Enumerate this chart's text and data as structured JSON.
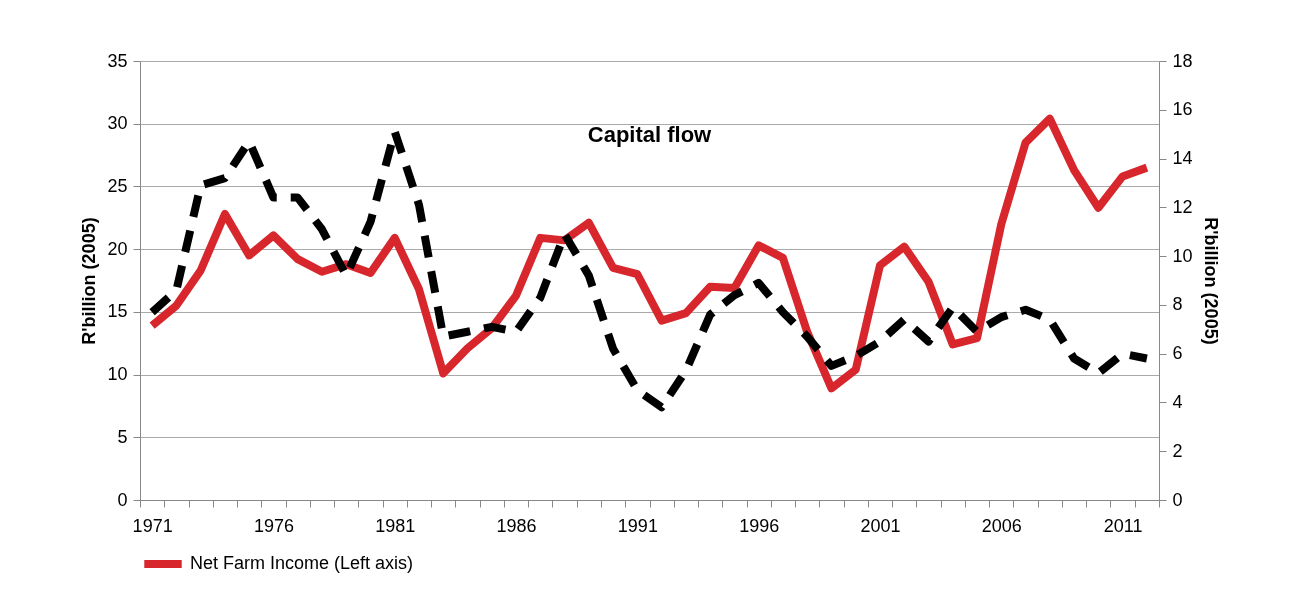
{
  "chart_data": {
    "type": "line",
    "title": "Capital flow",
    "ylabel": "R'billion (2005)",
    "y2label": "R'billion (2005)",
    "categories": [
      "1971",
      null,
      null,
      null,
      null,
      "1976",
      null,
      null,
      null,
      null,
      "1981",
      null,
      null,
      null,
      null,
      "1986",
      null,
      null,
      null,
      null,
      "1991",
      null,
      null,
      null,
      null,
      "1996",
      null,
      null,
      null,
      null,
      "2001",
      null,
      null,
      null,
      null,
      "2006",
      null,
      null,
      null,
      null,
      "2011",
      null
    ],
    "series": [
      {
        "name": "Net Farm Income (Left axis)",
        "color": "#d7262c",
        "line_style": "solid",
        "values": [
          13.9,
          15.5,
          18.3,
          22.8,
          19.5,
          21.1,
          19.2,
          18.2,
          18.8,
          18.1,
          20.9,
          16.8,
          10.1,
          12.1,
          13.7,
          16.3,
          20.9,
          20.7,
          22.1,
          18.5,
          18.0,
          14.3,
          14.9,
          17.0,
          16.9,
          20.3,
          19.3,
          13.4,
          8.9,
          10.4,
          18.7,
          20.2,
          17.4,
          12.4,
          12.9,
          22.0,
          28.5,
          30.4,
          26.3,
          23.3,
          25.8,
          26.5
        ]
      },
      {
        "color": "#000000",
        "axis": "y2",
        "line_style": "dashed",
        "values": [
          7.7,
          8.6,
          12.9,
          13.2,
          14.7,
          12.4,
          12.4,
          11.1,
          9.2,
          11.4,
          15.1,
          12.1,
          6.7,
          6.9,
          7.1,
          6.9,
          8.3,
          10.9,
          9.2,
          6.2,
          4.5,
          3.8,
          5.3,
          7.6,
          8.4,
          8.9,
          7.7,
          6.7,
          5.5,
          5.9,
          6.5,
          7.4,
          6.5,
          7.9,
          6.9,
          7.5,
          7.8,
          7.4,
          5.8,
          5.2,
          6.0,
          5.8
        ]
      }
    ],
    "ylim": [
      0,
      35
    ],
    "yticks": [
      0,
      5,
      10,
      15,
      20,
      25,
      30,
      35
    ],
    "y2lim": [
      0,
      18
    ],
    "y2ticks": [
      0,
      2,
      4,
      6,
      8,
      10,
      12,
      14,
      16,
      18
    ],
    "grid": "y",
    "legend": "bottom",
    "marker": "none"
  }
}
